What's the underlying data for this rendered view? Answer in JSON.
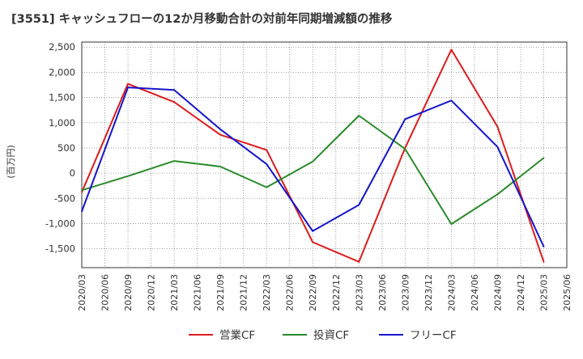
{
  "chart_data": {
    "type": "line",
    "title": "[3551]  キャッシュフローの12か月移動合計の対前年同期増減額の推移",
    "ylabel": "(百万円)",
    "xlabel": "",
    "ylim": [
      -1875,
      2600
    ],
    "yticks": [
      -1500,
      -1000,
      -500,
      0,
      500,
      1000,
      1500,
      2000,
      2500
    ],
    "ytick_labels": [
      "-1,500",
      "-1,000",
      "-500",
      "0",
      "500",
      "1,000",
      "1,500",
      "2,000",
      "2,500"
    ],
    "categories": [
      "2020/03",
      "2020/06",
      "2020/09",
      "2020/12",
      "2021/03",
      "2021/06",
      "2021/09",
      "2021/12",
      "2022/03",
      "2022/06",
      "2022/09",
      "2022/12",
      "2023/03",
      "2023/06",
      "2023/09",
      "2023/12",
      "2024/03",
      "2024/06",
      "2024/09",
      "2024/12",
      "2025/03",
      "2025/06"
    ],
    "grid": true,
    "legend_position": "bottom-center",
    "series": [
      {
        "name": "営業CF",
        "color": "#dd1c1c",
        "values": [
          -380,
          null,
          1770,
          null,
          1410,
          null,
          760,
          null,
          460,
          null,
          -1370,
          null,
          -1760,
          null,
          500,
          null,
          2450,
          null,
          920,
          null,
          -1760,
          null
        ]
      },
      {
        "name": "投資CF",
        "color": "#2a8a2a",
        "values": [
          -340,
          null,
          -60,
          null,
          240,
          null,
          130,
          null,
          -280,
          null,
          230,
          null,
          1140,
          null,
          480,
          null,
          -1010,
          null,
          -420,
          null,
          300,
          null
        ]
      },
      {
        "name": "フリーCF",
        "color": "#1515cc",
        "values": [
          -760,
          null,
          1700,
          null,
          1650,
          null,
          870,
          null,
          180,
          null,
          -1150,
          null,
          -630,
          null,
          1070,
          null,
          1440,
          null,
          520,
          null,
          -1460,
          null
        ]
      }
    ]
  }
}
